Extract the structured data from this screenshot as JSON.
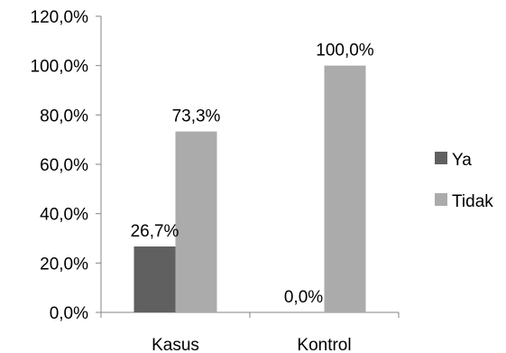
{
  "chart_data": {
    "type": "bar",
    "categories": [
      "Kasus",
      "Kontrol"
    ],
    "series": [
      {
        "name": "Ya",
        "values": [
          26.7,
          0.0
        ],
        "labels": [
          "26,7%",
          "0,0%"
        ],
        "color": "#606060"
      },
      {
        "name": "Tidak",
        "values": [
          73.3,
          100.0
        ],
        "labels": [
          "73,3%",
          "100,0%"
        ],
        "color": "#ababab"
      }
    ],
    "ylim": [
      0,
      120
    ],
    "yticks": [
      0,
      20,
      40,
      60,
      80,
      100,
      120
    ],
    "ytick_labels": [
      "0,0%",
      "20,0%",
      "40,0%",
      "60,0%",
      "80,0%",
      "100,0%",
      "120,0%"
    ],
    "title": "",
    "xlabel": "",
    "ylabel": "",
    "grid": false,
    "legend_position": "right",
    "axis_color": "#868686"
  }
}
